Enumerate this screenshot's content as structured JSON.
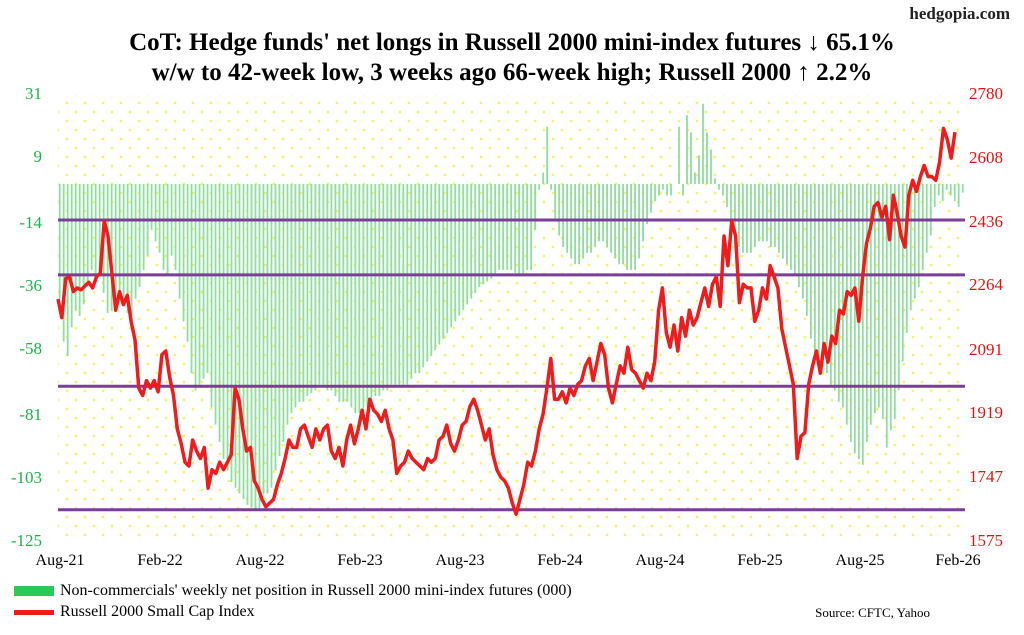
{
  "site": "hedgopia.com",
  "title": {
    "line1": "CoT: Hedge funds' net longs in Russell 2000 mini-index futures ↓ 65.1%",
    "line2": "w/w to 42-week low, 3 weeks ago 66-week high; Russell 2000 ↑ 2.2%"
  },
  "legend": {
    "bars": "Non-commercials' weekly net position in Russell 2000 mini-index futures (000)",
    "line": "Russell 2000 Small Cap Index"
  },
  "source": "Source: CFTC, Yahoo",
  "colors": {
    "bars": "#8fdd9f",
    "line": "#ee1c1c",
    "left_axis": "#19b34a",
    "right_axis": "#e3140f",
    "hlines": "#7a3d99",
    "grid_dots": "#f4f26a"
  },
  "chart_data": {
    "type": "bar+line",
    "x_range": [
      "Aug-21",
      "Feb-26"
    ],
    "x_ticks": [
      "Aug-21",
      "Feb-22",
      "Aug-22",
      "Feb-23",
      "Aug-23",
      "Feb-24",
      "Aug-24",
      "Feb-25",
      "Aug-25",
      "Feb-26"
    ],
    "left_axis": {
      "ticks": [
        31,
        9,
        -14,
        -36,
        -58,
        -81,
        -103,
        -125
      ],
      "ylim": [
        -125,
        31
      ]
    },
    "right_axis": {
      "ticks": [
        2780,
        2608,
        2436,
        2264,
        2091,
        1919,
        1747,
        1575
      ],
      "ylim": [
        1575,
        2780
      ]
    },
    "horizontal_lines_right_axis": [
      2443,
      2295,
      1995,
      1662
    ],
    "series": [
      {
        "name": "Non-commercials' weekly net position in Russell 2000 mini-index futures (000)",
        "axis": "left",
        "kind": "bar",
        "values": [
          -40,
          -55,
          -60,
          -50,
          -44,
          -46,
          -42,
          -35,
          -30,
          -32,
          -30,
          -38,
          -45,
          -44,
          -40,
          -40,
          -42,
          -45,
          -46,
          -40,
          -36,
          -30,
          -25,
          -16,
          -20,
          -24,
          -30,
          -32,
          -25,
          -30,
          -40,
          -48,
          -55,
          -66,
          -72,
          -70,
          -68,
          -66,
          -78,
          -84,
          -90,
          -96,
          -100,
          -104,
          -106,
          -108,
          -110,
          -112,
          -113,
          -114,
          -114,
          -108,
          -108,
          -106,
          -100,
          -95,
          -90,
          -84,
          -80,
          -78,
          -76,
          -76,
          -74,
          -73,
          -72,
          -70,
          -70,
          -72,
          -72,
          -74,
          -76,
          -76,
          -76,
          -78,
          -80,
          -80,
          -80,
          -78,
          -76,
          -74,
          -74,
          -72,
          -72,
          -70,
          -70,
          -70,
          -70,
          -70,
          -68,
          -66,
          -66,
          -64,
          -62,
          -60,
          -58,
          -56,
          -54,
          -52,
          -50,
          -48,
          -46,
          -44,
          -42,
          -40,
          -38,
          -36,
          -35,
          -34,
          -33,
          -32,
          -30,
          -30,
          -30,
          -30,
          -31,
          -32,
          -32,
          -30,
          -30,
          -16,
          -2,
          4,
          20,
          -2,
          -12,
          -18,
          -22,
          -24,
          -26,
          -28,
          -28,
          -26,
          -24,
          -24,
          -22,
          -20,
          -20,
          -22,
          -24,
          -26,
          -28,
          -28,
          -30,
          -30,
          -30,
          -26,
          -20,
          -14,
          -10,
          -6,
          -4,
          -2,
          -4,
          -4,
          0,
          20,
          -4,
          24,
          18,
          4,
          10,
          28,
          18,
          12,
          2,
          -2,
          -4,
          -8,
          -12,
          -18,
          -22,
          -24,
          -24,
          -24,
          -22,
          -20,
          -20,
          -20,
          -22,
          -22,
          -24,
          -26,
          -28,
          -30,
          -32,
          -36,
          -40,
          -46,
          -54,
          -60,
          -62,
          -64,
          -66,
          -70,
          -72,
          -76,
          -78,
          -84,
          -90,
          -94,
          -96,
          -98,
          -90,
          -84,
          -80,
          -78,
          -82,
          -92,
          -86,
          -82,
          -72,
          -62,
          -52,
          -44,
          -40,
          -36,
          -30,
          -24,
          -18,
          -8,
          -4,
          -6,
          -2,
          -4,
          -6,
          -8,
          -3
        ]
      },
      {
        "name": "Russell 2000 Small Cap Index",
        "axis": "right",
        "kind": "line",
        "values": [
          2230,
          2180,
          2285,
          2290,
          2250,
          2260,
          2255,
          2265,
          2275,
          2260,
          2290,
          2300,
          2440,
          2400,
          2300,
          2200,
          2250,
          2215,
          2240,
          2170,
          2120,
          1990,
          1970,
          2010,
          1990,
          2010,
          1980,
          2080,
          2090,
          2020,
          1970,
          1880,
          1840,
          1790,
          1780,
          1850,
          1820,
          1800,
          1830,
          1720,
          1770,
          1760,
          1790,
          1770,
          1790,
          1810,
          1990,
          1960,
          1880,
          1820,
          1830,
          1740,
          1720,
          1690,
          1670,
          1680,
          1690,
          1730,
          1760,
          1800,
          1850,
          1830,
          1830,
          1880,
          1890,
          1860,
          1830,
          1880,
          1850,
          1880,
          1890,
          1820,
          1800,
          1830,
          1780,
          1850,
          1890,
          1840,
          1880,
          1930,
          1880,
          1960,
          1930,
          1920,
          1900,
          1930,
          1880,
          1850,
          1760,
          1780,
          1790,
          1820,
          1800,
          1790,
          1780,
          1770,
          1800,
          1790,
          1800,
          1850,
          1860,
          1890,
          1840,
          1820,
          1850,
          1890,
          1900,
          1940,
          1960,
          1930,
          1890,
          1850,
          1880,
          1810,
          1770,
          1750,
          1740,
          1720,
          1680,
          1650,
          1690,
          1730,
          1790,
          1780,
          1820,
          1880,
          1920,
          1990,
          2070,
          1960,
          1960,
          1980,
          1950,
          1990,
          1970,
          2000,
          2010,
          2050,
          2070,
          2010,
          2060,
          2110,
          2080,
          1990,
          1950,
          2000,
          2050,
          2030,
          2100,
          2040,
          2030,
          2010,
          1990,
          2030,
          2010,
          2060,
          2200,
          2260,
          2140,
          2100,
          2160,
          2090,
          2180,
          2130,
          2200,
          2160,
          2180,
          2220,
          2260,
          2210,
          2270,
          2290,
          2210,
          2400,
          2320,
          2440,
          2400,
          2220,
          2270,
          2260,
          2260,
          2170,
          2200,
          2260,
          2230,
          2320,
          2290,
          2260,
          2150,
          2100,
          2050,
          2000,
          1800,
          1860,
          1870,
          2000,
          2050,
          2090,
          2030,
          2110,
          2060,
          2130,
          2110,
          2200,
          2190,
          2250,
          2240,
          2260,
          2170,
          2290,
          2380,
          2420,
          2480,
          2490,
          2450,
          2480,
          2390,
          2510,
          2460,
          2400,
          2370,
          2510,
          2550,
          2520,
          2560,
          2590,
          2560,
          2560,
          2550,
          2600,
          2690,
          2660,
          2610,
          2680
        ]
      }
    ]
  }
}
